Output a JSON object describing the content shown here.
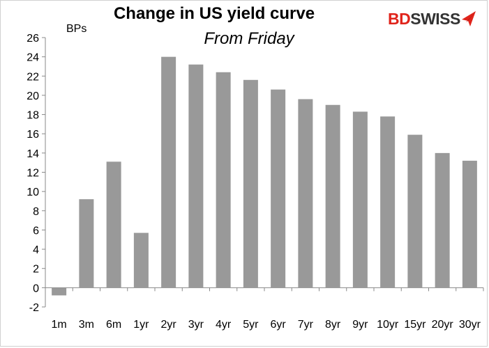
{
  "chart_data": {
    "type": "bar",
    "title": "Change in US yield curve",
    "subtitle": "From Friday",
    "ylabel": "BPs",
    "xlabel": "",
    "categories": [
      "1m",
      "3m",
      "6m",
      "1yr",
      "2yr",
      "3yr",
      "4yr",
      "5yr",
      "6yr",
      "7yr",
      "8yr",
      "9yr",
      "10yr",
      "15yr",
      "20yr",
      "30yr"
    ],
    "values": [
      -0.8,
      9.2,
      13.1,
      5.7,
      24.0,
      23.2,
      22.4,
      21.6,
      20.6,
      19.6,
      19.0,
      18.3,
      17.8,
      15.9,
      14.0,
      13.2
    ],
    "ylim": [
      -2,
      26
    ],
    "yticks": [
      -2,
      0,
      2,
      4,
      6,
      8,
      10,
      12,
      14,
      16,
      18,
      20,
      22,
      24,
      26
    ],
    "grid": false,
    "legend": "none",
    "bar_color": "#999999"
  },
  "brand": {
    "logo_bd": "BD",
    "logo_swiss": "SWISS",
    "accent_color": "#e0241b",
    "icon": "bdswiss-logo-icon"
  }
}
